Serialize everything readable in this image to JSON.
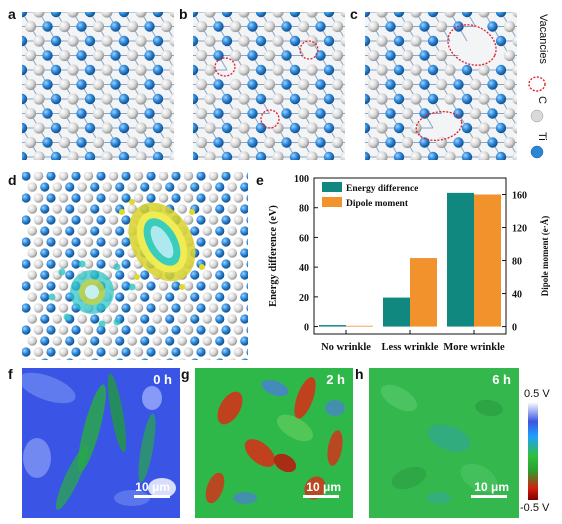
{
  "panels": {
    "a": "a",
    "b": "b",
    "c": "c",
    "d": "d",
    "e": "e",
    "f": "f",
    "g": "g",
    "h": "h"
  },
  "atom_legend": {
    "vacancies": "Vacancies",
    "carbon": "C",
    "titanium": "Ti",
    "carbon_color": "#d9d9d9",
    "titanium_color": "#2b86d8",
    "vacancy_color": "#e0202a"
  },
  "chart_data": {
    "type": "bar",
    "categories": [
      "No wrinkle",
      "Less wrinkle",
      "More wrinkle"
    ],
    "series": [
      {
        "name": "Energy difference",
        "values": [
          1,
          19.5,
          90
        ],
        "color": "#10877f",
        "axis": "left"
      },
      {
        "name": "Dipole moment",
        "values": [
          1,
          83,
          160
        ],
        "color": "#f2922c",
        "axis": "right"
      }
    ],
    "ylabel": "Energy difference (eV)",
    "ylim": [
      -5,
      100
    ],
    "yticks": [
      0,
      20,
      40,
      60,
      80,
      100
    ],
    "y2label": "Dipole moment (e·Å)",
    "y2lim": [
      -9,
      180
    ],
    "y2ticks": [
      0,
      40,
      80,
      120,
      160
    ],
    "legend_position": "top-left"
  },
  "maps": [
    {
      "time": "0 h",
      "scale": "10 μm"
    },
    {
      "time": "2 h",
      "scale": "10 μm"
    },
    {
      "time": "6 h",
      "scale": "10 μm"
    }
  ],
  "colorbar": {
    "max_label": "0.5 V",
    "min_label": "-0.5 V"
  }
}
